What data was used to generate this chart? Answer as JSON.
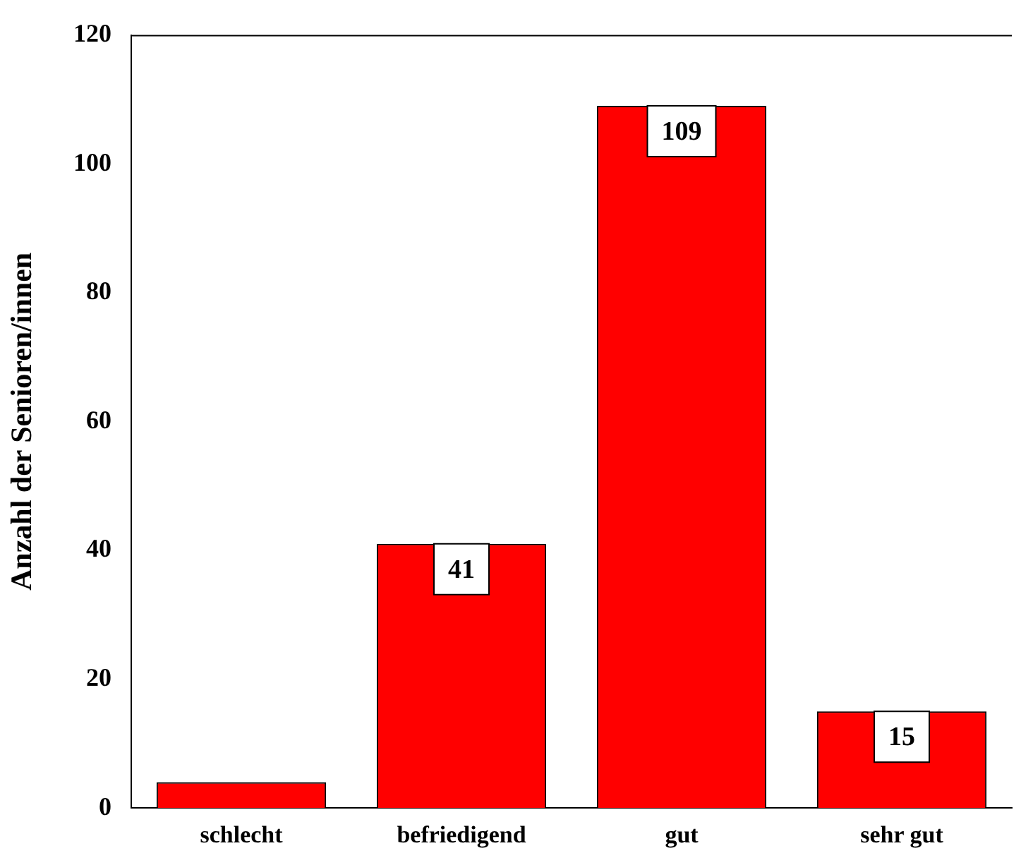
{
  "chart_data": {
    "type": "bar",
    "ylabel": "Anzahl der Senioren/innen",
    "categories": [
      "schlecht",
      "befriedigend",
      "gut",
      "sehr gut"
    ],
    "values": [
      4,
      41,
      109,
      15
    ],
    "value_labels": [
      null,
      "41",
      "109",
      "15"
    ],
    "color": "#ff0000",
    "ylim": [
      0,
      120
    ],
    "yticks": [
      0,
      20,
      40,
      60,
      80,
      100,
      120
    ],
    "grid": false,
    "legend": false
  }
}
